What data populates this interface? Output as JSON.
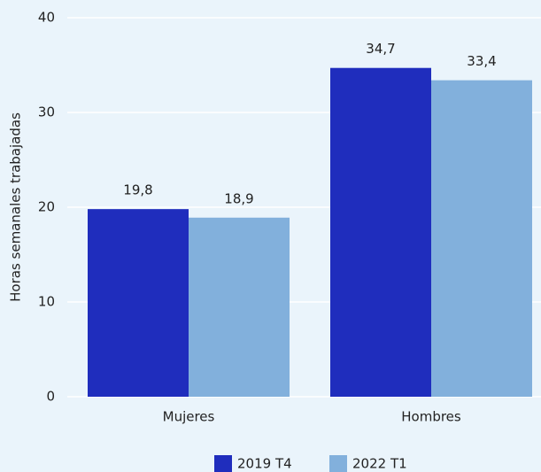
{
  "chart_data": {
    "type": "bar",
    "ylabel": "Horas semanales trabajadas",
    "categories": [
      "Mujeres",
      "Hombres"
    ],
    "series": [
      {
        "name": "2019 T4",
        "color": "#1f2dbd",
        "values": [
          19.8,
          34.7
        ],
        "value_labels": [
          "19,8",
          "34,7"
        ]
      },
      {
        "name": "2022 T1",
        "color": "#82b0dc",
        "values": [
          18.9,
          33.4
        ],
        "value_labels": [
          "18,9",
          "33,4"
        ]
      }
    ],
    "ylim": [
      0,
      40
    ],
    "yticks": [
      0,
      10,
      20,
      30,
      40
    ],
    "grid": true,
    "legend": "bottom"
  }
}
